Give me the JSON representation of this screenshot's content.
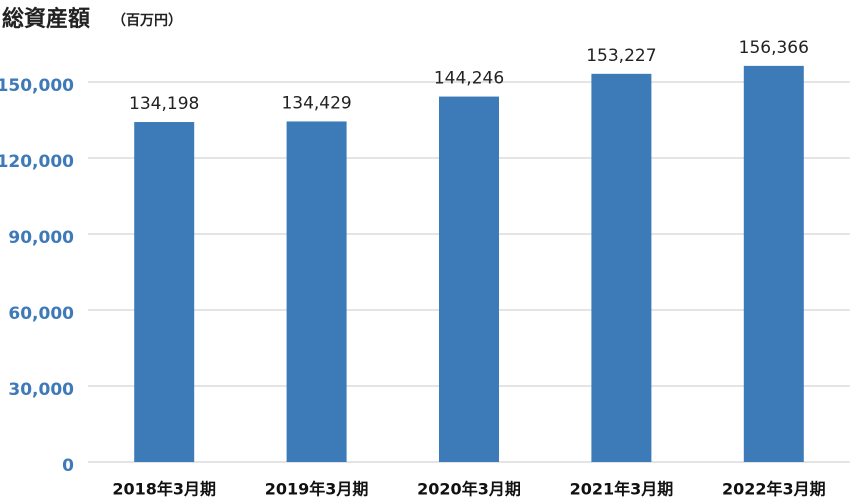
{
  "chart_data": {
    "type": "bar",
    "title": "総資産額",
    "subtitle": "（百万円）",
    "categories": [
      "2018年3月期",
      "2019年3月期",
      "2020年3月期",
      "2021年3月期",
      "2022年3月期"
    ],
    "values": [
      134198,
      134429,
      144246,
      153227,
      156366
    ],
    "value_labels": [
      "134,198",
      "134,429",
      "144,246",
      "153,227",
      "156,366"
    ],
    "color": "#3d7bb8",
    "ylim": [
      0,
      150000
    ],
    "yticks": [
      0,
      {
        "value": 30000,
        "label": "30,000"
      },
      {
        "value": 60000,
        "label": "60,000"
      },
      {
        "value": 90000,
        "label": "90,000"
      },
      {
        "value": 120000,
        "label": "120,000"
      },
      {
        "value": 150000,
        "label": "150,000"
      }
    ],
    "grid": true
  }
}
